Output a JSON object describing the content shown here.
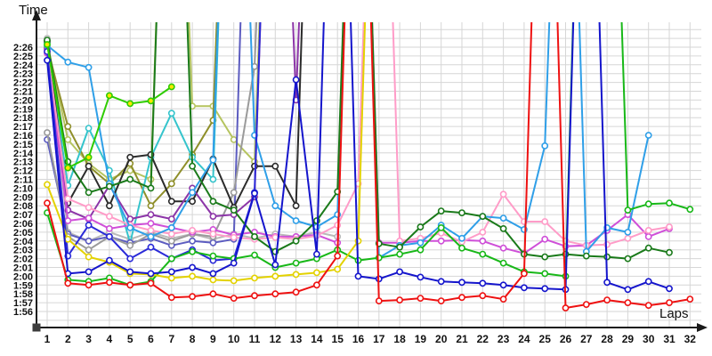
{
  "page": {
    "ylabel_text": "Time",
    "xlabel_text": "Laps"
  },
  "colors": {
    "background": "#ffffff",
    "grid": "#d6d6d6",
    "axis": "#1a1a1a",
    "tick_text": "#111111"
  },
  "chart_data": {
    "type": "line",
    "title": "",
    "xlabel": "Laps",
    "ylabel": "Time",
    "grid": true,
    "legend": "none",
    "x_categories": [
      "1",
      "2",
      "3",
      "4",
      "5",
      "6",
      "7",
      "8",
      "9",
      "10",
      "11",
      "12",
      "13",
      "14",
      "15",
      "16",
      "17",
      "18",
      "19",
      "20",
      "21",
      "22",
      "23",
      "24",
      "25",
      "26",
      "27",
      "28",
      "29",
      "30",
      "31",
      "32"
    ],
    "y_tick_labels": [
      "2:26",
      "2:25",
      "2:24",
      "2:23",
      "2:22",
      "2:21",
      "2:20",
      "2:19",
      "2:18",
      "2:17",
      "2:16",
      "2:15",
      "2:14",
      "2:13",
      "2:12",
      "2:11",
      "2:10",
      "2:09",
      "2:08",
      "2:07",
      "2:06",
      "2:05",
      "2:04",
      "2:03",
      "2:02",
      "2:01",
      "2:00",
      "1:59",
      "1:58",
      "1:57",
      "1:56"
    ],
    "y_tick_seconds": [
      146,
      145,
      144,
      143,
      142,
      141,
      140,
      139,
      138,
      137,
      136,
      135,
      134,
      133,
      132,
      131,
      130,
      129,
      128,
      127,
      126,
      125,
      124,
      123,
      122,
      121,
      120,
      119,
      118,
      117,
      116
    ],
    "ylim_seconds": [
      115,
      148.6
    ],
    "offscale_pit_value_seconds": 200,
    "series": [
      {
        "name": "silver",
        "color": "#b9b9b9",
        "marker_fill": "#ffffff",
        "values_seconds": [
          147.0,
          125.0,
          124.0,
          125.0,
          124.2,
          125.0,
          124.3,
          124.8,
          124.2,
          124.8,
          124.3,
          124.8,
          124.5,
          125.0,
          124.5,
          200
        ]
      },
      {
        "name": "khaki",
        "color": "#b5c45f",
        "marker_fill": "#ffffff",
        "values_seconds": [
          146.5,
          135.5,
          132.8,
          131.0,
          132.0,
          131.0,
          200,
          139.3,
          139.3,
          135.5,
          133.0,
          200
        ]
      },
      {
        "name": "olive",
        "color": "#8f8f2a",
        "marker_fill": "#ffffff",
        "values_seconds": [
          146.0,
          137.0,
          132.5,
          130.5,
          132.8,
          128.0,
          130.5,
          133.8,
          137.7,
          200
        ]
      },
      {
        "name": "cyan",
        "color": "#35c4cc",
        "marker_fill": "#ffffff",
        "values_seconds": [
          146.5,
          130.3,
          136.8,
          132.0,
          123.8,
          133.5,
          138.5,
          133.5,
          131.0,
          200
        ]
      },
      {
        "name": "navy",
        "color": "#5c5cc0",
        "marker_fill": "#ffffff",
        "values_seconds": [
          135.5,
          124.8,
          124.0,
          124.5,
          123.8,
          124.3,
          123.5,
          124.0,
          123.8,
          124.2,
          200
        ]
      },
      {
        "name": "gray",
        "color": "#9a9a9a",
        "marker_fill": "#ffffff",
        "values_seconds": [
          136.3,
          124.5,
          123.0,
          124.5,
          123.5,
          124.8,
          124.0,
          124.8,
          124.5,
          129.5,
          143.8,
          200
        ]
      },
      {
        "name": "black",
        "color": "#2b2b2b",
        "marker_fill": "#ffffff",
        "values_seconds": [
          146.7,
          128.3,
          132.5,
          128.0,
          133.5,
          133.8,
          128.5,
          128.5,
          133.3,
          127.8,
          132.5,
          132.5,
          128.0,
          200
        ]
      },
      {
        "name": "purple",
        "color": "#8c35a8",
        "marker_fill": "#ffffff",
        "values_seconds": [
          145.8,
          127.5,
          126.5,
          130.3,
          126.5,
          127.0,
          126.5,
          130.0,
          126.8,
          127.0,
          129.0,
          200,
          140.0,
          200
        ]
      },
      {
        "name": "magenta",
        "color": "#cf4fd8",
        "marker_fill": "#ffffff",
        "values_seconds": [
          145.3,
          126.3,
          126.6,
          125.4,
          125.8,
          126.0,
          125.5,
          125.0,
          125.3,
          124.7,
          125.0,
          124.5,
          124.5,
          124.7,
          123.8,
          200,
          123.8,
          123.8,
          124.0,
          124.0,
          124.1,
          124.0,
          123.2,
          122.6,
          124.2,
          123.4,
          123.5,
          125.2,
          127.0,
          124.5,
          125.4
        ]
      },
      {
        "name": "pink",
        "color": "#ff9cc8",
        "marker_fill": "#ffffff",
        "values_seconds": [
          145.5,
          128.8,
          127.8,
          126.8,
          125.8,
          125.2,
          124.8,
          125.2,
          124.8,
          124.4,
          124.2,
          124.4,
          124.2,
          124.6,
          125.8,
          130.5,
          200,
          124.0,
          124.3,
          124.9,
          123.9,
          125.0,
          129.3,
          126.2,
          126.2,
          124.0,
          123.5,
          123.6,
          124.3,
          125.2,
          125.6
        ]
      },
      {
        "name": "skyblue",
        "color": "#2f9fe8",
        "marker_fill": "#ffffff",
        "values_seconds": [
          146.2,
          144.3,
          143.7,
          130.5,
          125.5,
          124.5,
          125.5,
          129.5,
          133.2,
          200,
          136.0,
          128.0,
          126.3,
          125.6,
          127.0,
          200,
          122.1,
          123.5,
          123.8,
          125.8,
          124.3,
          126.8,
          126.6,
          125.3,
          134.8,
          200,
          122.8,
          125.5,
          125.0,
          136.0
        ]
      },
      {
        "name": "blue2",
        "color": "#2a2ad8",
        "marker_fill": "#ffffff",
        "values_seconds": [
          145.5,
          122.3,
          125.8,
          124.5,
          122.0,
          123.3,
          122.0,
          123.0,
          121.8,
          122.0,
          129.5,
          200
        ]
      },
      {
        "name": "darkgreen",
        "color": "#1a7a1a",
        "marker_fill": "#ffffff",
        "values_seconds": [
          146.8,
          133.0,
          129.5,
          130.2,
          131.0,
          130.0,
          200,
          132.5,
          128.5,
          127.5,
          124.5,
          122.8,
          124.0,
          126.3,
          129.6,
          200,
          123.7,
          123.3,
          125.6,
          127.4,
          127.2,
          126.8,
          125.4,
          122.5,
          122.2,
          122.5,
          122.3,
          122.2,
          122.0,
          123.2,
          122.7
        ]
      },
      {
        "name": "lime",
        "color": "#2ecc00",
        "marker_fill": "#ffe800",
        "values_seconds": [
          146.3,
          132.3,
          133.5,
          140.5,
          139.6,
          139.9,
          141.5
        ]
      },
      {
        "name": "green",
        "color": "#18b818",
        "marker_fill": "#ffffff",
        "values_seconds": [
          127.2,
          119.6,
          119.4,
          119.8,
          119.0,
          119.4,
          122.0,
          122.8,
          122.3,
          122.0,
          122.4,
          121.0,
          121.5,
          122.0,
          123.0,
          121.8,
          122.1,
          122.5,
          123.0,
          125.5,
          123.2,
          122.5,
          121.5,
          120.5,
          120.3,
          120.0,
          200,
          200,
          127.5,
          128.2,
          128.3,
          127.6
        ]
      },
      {
        "name": "yellow",
        "color": "#e3d200",
        "marker_fill": "#ffffff",
        "values_seconds": [
          130.4,
          124.2,
          122.2,
          121.6,
          120.3,
          120.2,
          119.8,
          120.0,
          119.6,
          119.5,
          119.8,
          120.0,
          120.2,
          120.4,
          120.8,
          124.0,
          200
        ]
      },
      {
        "name": "blue",
        "color": "#1515cc",
        "marker_fill": "#ffffff",
        "values_seconds": [
          144.5,
          120.3,
          120.5,
          121.8,
          120.5,
          120.3,
          120.5,
          121.0,
          120.3,
          121.5,
          129.4,
          121.3,
          142.3,
          122.5,
          200,
          120.0,
          119.7,
          120.5,
          119.9,
          119.4,
          119.3,
          119.2,
          119.0,
          118.7,
          118.6,
          118.5,
          200,
          119.3,
          118.5,
          119.4,
          118.6
        ]
      },
      {
        "name": "red",
        "color": "#ee1111",
        "marker_fill": "#ffffff",
        "values_seconds": [
          128.3,
          119.2,
          119.0,
          119.3,
          119.0,
          119.2,
          117.6,
          117.7,
          118.0,
          117.5,
          117.8,
          118.0,
          118.2,
          119.0,
          122.3,
          200,
          117.2,
          117.3,
          117.5,
          117.2,
          117.6,
          117.8,
          117.4,
          120.3,
          200,
          116.4,
          116.8,
          117.3,
          117.0,
          116.7,
          117.0,
          117.4
        ]
      }
    ]
  }
}
